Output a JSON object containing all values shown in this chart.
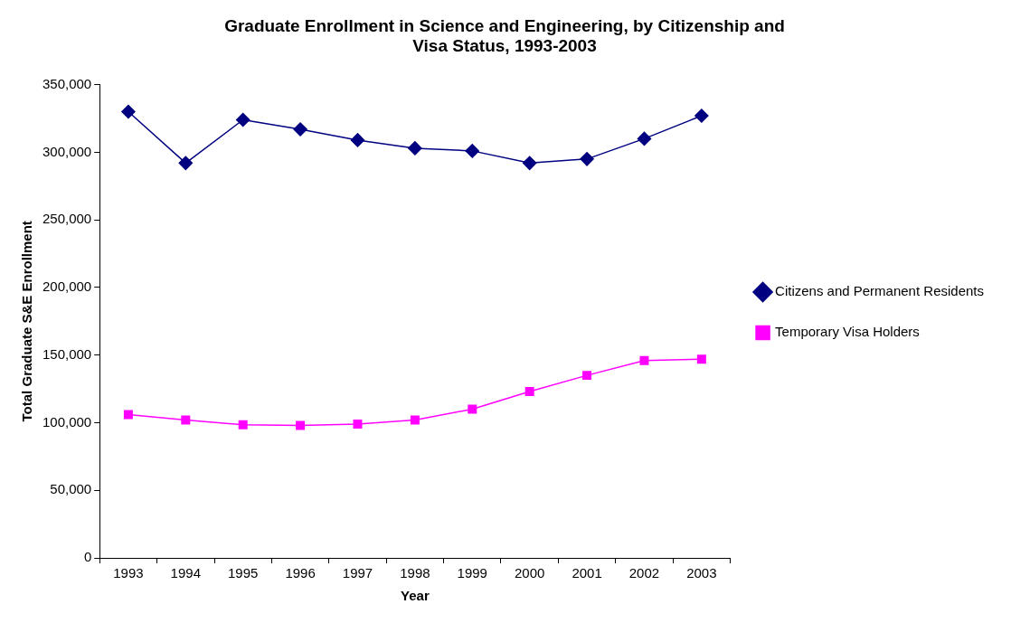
{
  "chart_data": {
    "type": "line",
    "title": "Graduate Enrollment in Science and Engineering, by Citizenship and Visa Status, 1993-2003",
    "xlabel": "Year",
    "ylabel": "Total Graduate S&E Enrollment",
    "categories": [
      "1993",
      "1994",
      "1995",
      "1996",
      "1997",
      "1998",
      "1999",
      "2000",
      "2001",
      "2002",
      "2003"
    ],
    "series": [
      {
        "name": "Citizens and Permanent Residents",
        "color": "#000080",
        "marker": "diamond",
        "values": [
          330000,
          292000,
          324000,
          317000,
          309000,
          303000,
          301000,
          292000,
          295000,
          310000,
          327000
        ]
      },
      {
        "name": "Temporary Visa Holders",
        "color": "#ff00ff",
        "marker": "square",
        "values": [
          106000,
          102000,
          98500,
          98000,
          99000,
          102000,
          110000,
          123000,
          135000,
          146000,
          147000
        ]
      }
    ],
    "ylim": [
      0,
      350000
    ],
    "yticks": [
      0,
      {
        "value": 50000,
        "label": "50,000"
      },
      {
        "value": 100000,
        "label": "100,000"
      },
      {
        "value": 150000,
        "label": "150,000"
      },
      {
        "value": 200000,
        "label": "200,000"
      },
      {
        "value": 250000,
        "label": "250,000"
      },
      {
        "value": 300000,
        "label": "300,000"
      },
      {
        "value": 350000,
        "label": "350,000"
      }
    ],
    "grid": false,
    "legend": "right"
  }
}
